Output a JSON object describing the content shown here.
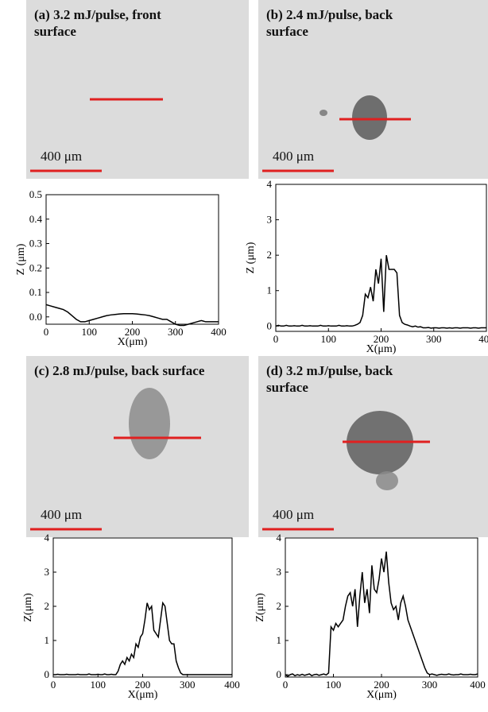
{
  "chart_data": [
    {
      "type": "line",
      "title": "(a) 3.2 mJ/pulse, front surface",
      "annotation": "400 μm",
      "xlabel": "X(μm)",
      "ylabel": "Z (μm)",
      "color": "#000000",
      "x": [
        0,
        10,
        20,
        30,
        40,
        50,
        60,
        70,
        80,
        90,
        100,
        110,
        120,
        130,
        140,
        150,
        160,
        170,
        180,
        190,
        200,
        210,
        220,
        230,
        240,
        250,
        260,
        270,
        280,
        290,
        300,
        310,
        320,
        330,
        340,
        350,
        360,
        370,
        380,
        390,
        400
      ],
      "values": [
        0.05,
        0.045,
        0.04,
        0.035,
        0.03,
        0.02,
        0.005,
        -0.01,
        -0.02,
        -0.02,
        -0.015,
        -0.01,
        -0.005,
        0,
        0.005,
        0.008,
        0.01,
        0.012,
        0.013,
        0.013,
        0.013,
        0.012,
        0.01,
        0.008,
        0.005,
        0,
        -0.005,
        -0.01,
        -0.01,
        -0.02,
        -0.03,
        -0.035,
        -0.035,
        -0.03,
        -0.025,
        -0.02,
        -0.015,
        -0.02,
        -0.02,
        -0.02,
        -0.02
      ],
      "xlim": [
        0,
        400
      ],
      "xticks": [
        0,
        100,
        200,
        300,
        400
      ],
      "ylim": [
        -0.03,
        0.5
      ],
      "yticks": [
        {
          "value": 0,
          "label": "0.0"
        },
        0.1,
        0.2,
        0.3,
        0.4,
        0.5
      ]
    },
    {
      "type": "line",
      "title": "(b) 2.4 mJ/pulse, back surface",
      "annotation": "400 μm",
      "xlabel": "X(μm)",
      "ylabel": "Z (μm)",
      "color": "#000000",
      "x": [
        0,
        5,
        10,
        15,
        20,
        25,
        30,
        35,
        40,
        45,
        50,
        55,
        60,
        65,
        70,
        75,
        80,
        85,
        90,
        95,
        100,
        105,
        110,
        115,
        120,
        125,
        130,
        135,
        140,
        145,
        150,
        155,
        160,
        165,
        170,
        175,
        180,
        185,
        190,
        195,
        200,
        205,
        210,
        215,
        220,
        225,
        230,
        235,
        240,
        245,
        250,
        255,
        260,
        265,
        270,
        275,
        280,
        285,
        290,
        295,
        300,
        305,
        310,
        315,
        320,
        325,
        330,
        335,
        340,
        345,
        350,
        355,
        360,
        365,
        370,
        375,
        380,
        385,
        390,
        395,
        400
      ],
      "values": [
        0,
        0.02,
        0,
        0,
        0.02,
        0,
        0,
        0.01,
        0,
        0,
        0.02,
        0,
        0,
        0.01,
        0,
        0,
        0,
        0.02,
        0,
        0,
        0.01,
        0,
        0,
        0,
        0.02,
        0,
        0,
        0.01,
        0,
        0,
        0.02,
        0.05,
        0.1,
        0.3,
        0.9,
        0.8,
        1.1,
        0.7,
        1.6,
        1.2,
        1.9,
        0.4,
        2.0,
        1.6,
        1.6,
        1.6,
        1.5,
        0.3,
        0.1,
        0.05,
        0.03,
        0,
        -0.02,
        0,
        -0.03,
        -0.02,
        -0.05,
        -0.05,
        -0.04,
        -0.06,
        -0.05,
        -0.05,
        -0.06,
        -0.05,
        -0.05,
        -0.06,
        -0.05,
        -0.06,
        -0.05,
        -0.05,
        -0.06,
        -0.05,
        -0.05,
        -0.05,
        -0.06,
        -0.05,
        -0.05,
        -0.06,
        -0.05,
        -0.05,
        -0.05
      ],
      "xlim": [
        0,
        400
      ],
      "xticks": [
        0,
        100,
        200,
        300,
        400
      ],
      "ylim": [
        -0.15,
        4
      ],
      "yticks": [
        0,
        1,
        2,
        3,
        4
      ]
    },
    {
      "type": "line",
      "title": "(c) 2.8 mJ/pulse, back surface",
      "annotation": "400 μm",
      "xlabel": "X(μm)",
      "ylabel": "Z(μm)",
      "color": "#000000",
      "x": [
        0,
        5,
        10,
        15,
        20,
        25,
        30,
        35,
        40,
        45,
        50,
        55,
        60,
        65,
        70,
        75,
        80,
        85,
        90,
        95,
        100,
        105,
        110,
        115,
        120,
        125,
        130,
        135,
        140,
        145,
        150,
        155,
        160,
        165,
        170,
        175,
        180,
        185,
        190,
        195,
        200,
        205,
        210,
        215,
        220,
        225,
        230,
        235,
        240,
        245,
        250,
        255,
        260,
        265,
        270,
        275,
        280,
        285,
        290,
        295,
        300,
        305,
        310,
        315,
        320,
        325,
        330,
        335,
        340,
        345,
        350,
        355,
        360,
        365,
        370,
        375,
        380,
        385,
        390,
        395,
        400
      ],
      "values": [
        0,
        0,
        0.01,
        0,
        0,
        0,
        0.01,
        0,
        0,
        0,
        0,
        0.01,
        0,
        0,
        0,
        0,
        0.02,
        0,
        0,
        0,
        0.01,
        0,
        0,
        0.02,
        0,
        0,
        0.01,
        0,
        0,
        0.1,
        0.3,
        0.4,
        0.3,
        0.5,
        0.4,
        0.6,
        0.5,
        0.9,
        0.8,
        1.1,
        1.2,
        1.6,
        2.1,
        1.9,
        2.0,
        1.3,
        1.2,
        1.1,
        1.6,
        2.1,
        2.0,
        1.5,
        1.0,
        0.9,
        0.9,
        0.4,
        0.2,
        0.05,
        0,
        0,
        0,
        0,
        0,
        0,
        0,
        0,
        0,
        0,
        0,
        0,
        0,
        0,
        0,
        0,
        0,
        0,
        0,
        0,
        0,
        0,
        0
      ],
      "xlim": [
        0,
        400
      ],
      "xticks": [
        0,
        100,
        200,
        300,
        400
      ],
      "ylim": [
        -0.07,
        4
      ],
      "yticks": [
        0,
        1,
        2,
        3,
        4
      ]
    },
    {
      "type": "line",
      "title": "(d) 3.2 mJ/pulse, back surface",
      "annotation": "400 μm",
      "xlabel": "X(μm)",
      "ylabel": "Z(μm)",
      "color": "#000000",
      "x": [
        0,
        5,
        10,
        15,
        20,
        25,
        30,
        35,
        40,
        45,
        50,
        55,
        60,
        65,
        70,
        75,
        80,
        85,
        90,
        95,
        100,
        105,
        110,
        115,
        120,
        125,
        130,
        135,
        140,
        145,
        150,
        155,
        160,
        165,
        170,
        175,
        180,
        185,
        190,
        195,
        200,
        205,
        210,
        215,
        220,
        225,
        230,
        235,
        240,
        245,
        250,
        255,
        260,
        265,
        270,
        275,
        280,
        285,
        290,
        295,
        300,
        305,
        310,
        315,
        320,
        325,
        330,
        335,
        340,
        345,
        350,
        355,
        360,
        365,
        370,
        375,
        380,
        385,
        390,
        395,
        400
      ],
      "values": [
        0,
        -0.05,
        0,
        0.02,
        -0.03,
        0,
        -0.02,
        0.01,
        -0.02,
        0,
        0.02,
        -0.03,
        0,
        0.01,
        -0.02,
        0,
        0.02,
        -0.01,
        0.05,
        1.4,
        1.3,
        1.5,
        1.4,
        1.5,
        1.6,
        2.0,
        2.3,
        2.4,
        2.0,
        2.5,
        1.4,
        2.3,
        3.0,
        2.1,
        2.5,
        1.8,
        3.2,
        2.5,
        2.4,
        2.8,
        3.4,
        3.0,
        3.6,
        2.7,
        2.1,
        1.9,
        2.0,
        1.6,
        2.1,
        2.3,
        2.0,
        1.6,
        1.4,
        1.2,
        1.0,
        0.8,
        0.6,
        0.4,
        0.2,
        0.05,
        0,
        0.02,
        0,
        -0.02,
        0,
        0.01,
        0,
        0,
        0.02,
        0,
        -0.01,
        0,
        0,
        0.02,
        0,
        0,
        0,
        0.01,
        0,
        0,
        0.02
      ],
      "xlim": [
        0,
        400
      ],
      "xticks": [
        0,
        100,
        200,
        300,
        400
      ],
      "ylim": [
        -0.07,
        4
      ],
      "yticks": [
        0,
        1,
        2,
        3,
        4
      ]
    }
  ]
}
